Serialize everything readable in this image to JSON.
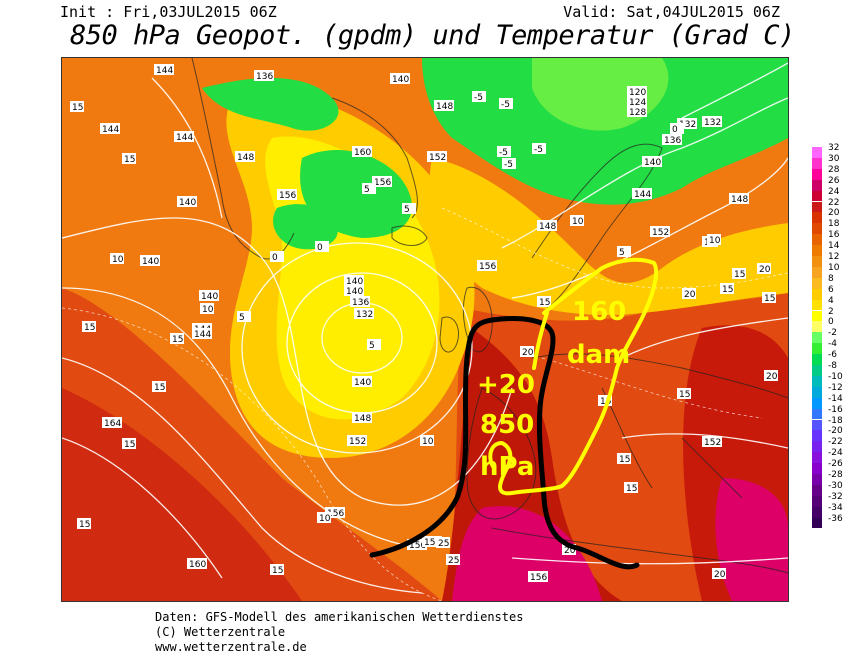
{
  "header": {
    "init": "Init : Fri,03JUL2015 06Z",
    "valid": "Valid: Sat,04JUL2015 06Z",
    "title": "850 hPa Geopot. (gpdm) und Temperatur (Grad C)"
  },
  "footer": {
    "line1": "Daten: GFS-Modell des amerikanischen Wetterdienstes",
    "line2": "(C) Wetterzentrale",
    "line3": "www.wetterzentrale.de"
  },
  "annotation": {
    "dam_label_1": "160",
    "dam_label_2": "dam",
    "temp_label_1": "+20",
    "temp_label_2": "850",
    "temp_label_3": "hPa"
  },
  "legend": {
    "labels": [
      "32",
      "30",
      "28",
      "26",
      "24",
      "22",
      "20",
      "18",
      "16",
      "14",
      "12",
      "10",
      "8",
      "6",
      "4",
      "2",
      "0",
      "-2",
      "-4",
      "-6",
      "-8",
      "-10",
      "-12",
      "-14",
      "-16",
      "-18",
      "-20",
      "-22",
      "-24",
      "-26",
      "-28",
      "-30",
      "-32",
      "-34",
      "-36"
    ],
    "colors": [
      "#ff66ff",
      "#ff33cc",
      "#ff0099",
      "#cc0066",
      "#cc0033",
      "#cc1a1a",
      "#d93300",
      "#e04a00",
      "#e86400",
      "#ee7a00",
      "#f29010",
      "#f7a520",
      "#fbbb20",
      "#ffcc00",
      "#ffe000",
      "#ffff00",
      "#ffff66",
      "#66ff66",
      "#33ee33",
      "#00dd55",
      "#00cc88",
      "#00bbbb",
      "#00aadd",
      "#0099ff",
      "#3377ff",
      "#5555ff",
      "#6633ff",
      "#7722ee",
      "#8811dd",
      "#8800cc",
      "#7700aa",
      "#660088",
      "#550077",
      "#440066",
      "#330055"
    ]
  },
  "contour_labels": {
    "geopot": [
      "144",
      "144",
      "136",
      "144",
      "140",
      "148",
      "132",
      "128",
      "124",
      "120",
      "160",
      "156",
      "148",
      "152",
      "140",
      "144",
      "140",
      "136",
      "132",
      "140",
      "140",
      "148",
      "152",
      "156",
      "164",
      "156",
      "156",
      "152",
      "148",
      "144",
      "140",
      "136",
      "132",
      "140",
      "144",
      "152",
      "148",
      "152",
      "160",
      "156",
      "156",
      "140"
    ],
    "temp": [
      "15",
      "15",
      "10",
      "10",
      "15",
      "10",
      "5",
      "5",
      "10",
      "15",
      "15",
      "20",
      "20",
      "25",
      "25",
      "20",
      "20",
      "15",
      "15",
      "15",
      "15",
      "15",
      "15",
      "15",
      "10",
      "10",
      "5",
      "0",
      "0",
      "-5",
      "-5",
      "-5",
      "-5",
      "-5",
      "5",
      "5",
      "0",
      "10",
      "10",
      "15",
      "15",
      "15",
      "20",
      "20",
      "15",
      "10"
    ]
  },
  "map_colors": {
    "green": "#22dd44",
    "light_green": "#66ee44",
    "yellow": "#ffff00",
    "orange": "#ff9900",
    "deep_orange": "#ee6600",
    "red": "#cc2200",
    "magenta": "#dd0077",
    "annotation_yellow": "#ffff00",
    "annotation_black": "#000000"
  }
}
